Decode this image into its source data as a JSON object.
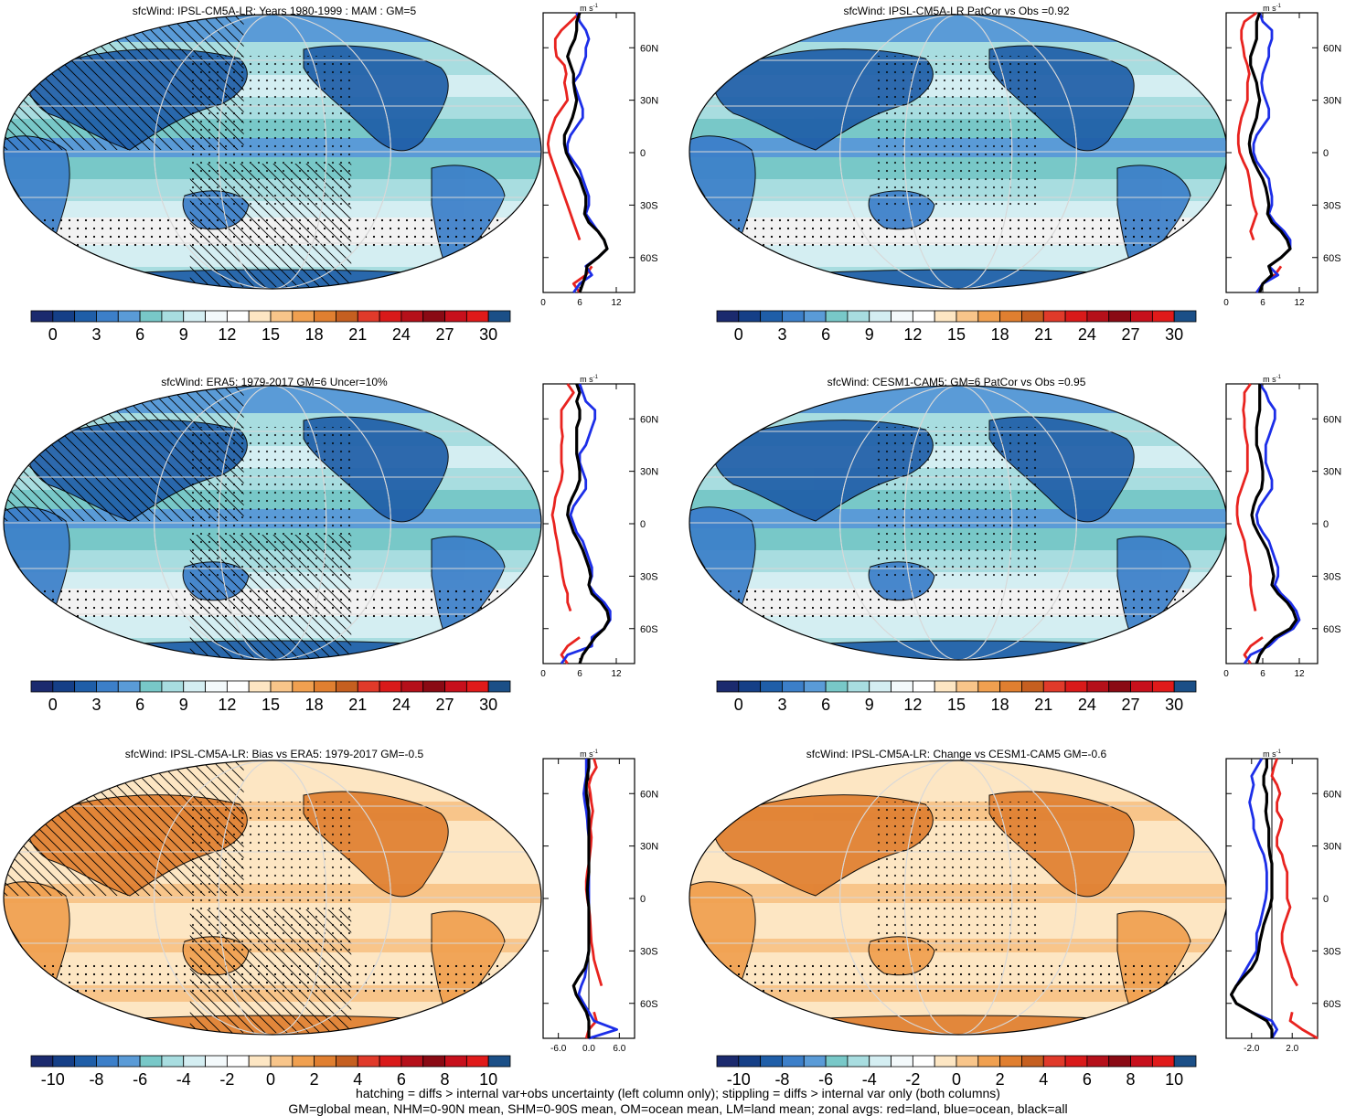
{
  "colors": {
    "mean_scale": [
      "#1b2a6e",
      "#153f87",
      "#1f5ea8",
      "#3c7fc9",
      "#5a9bd7",
      "#78c8c8",
      "#a8dde0",
      "#d4eef2",
      "#f3f9fb",
      "#ffffff",
      "#fde6c3",
      "#f8c58a",
      "#f0a050",
      "#e07f30",
      "#c55f20",
      "#e03a2a",
      "#d91a1a",
      "#b5101a",
      "#8a0a14",
      "#c7101c",
      "#e01a1a",
      "#1b4f87"
    ],
    "diff_scale": [
      "#1b2a6e",
      "#153f87",
      "#1f5ea8",
      "#3c7fc9",
      "#5a9bd7",
      "#78c8c8",
      "#a8dde0",
      "#d4eef2",
      "#f3f9fb",
      "#ffffff",
      "#fde6c3",
      "#f8c58a",
      "#f0a050",
      "#e07f30",
      "#c55f20",
      "#e03a2a",
      "#d91a1a",
      "#b5101a",
      "#8a0a14",
      "#c7101c",
      "#e01a1a",
      "#1b4f87"
    ],
    "land": "#e8231f",
    "ocean": "#1c2ee8",
    "all": "#000000"
  },
  "panels": [
    {
      "title": "sfcWind: IPSL-CM5A-LR: Years 1980-1999 : MAM : GM=5",
      "map_type": "mean",
      "hatched": true,
      "colorbar_labels": [
        "0",
        "3",
        "6",
        "9",
        "12",
        "15",
        "18",
        "21",
        "24",
        "27",
        "30"
      ],
      "zonal": {
        "unit": "m s",
        "unit_exp": "-1",
        "lat_labels": [
          "60N",
          "30N",
          "0",
          "30S",
          "60S"
        ],
        "x_labels": [
          "0",
          "6",
          "12"
        ],
        "xlim": [
          0,
          15
        ],
        "lat": [
          80,
          75,
          70,
          65,
          60,
          55,
          50,
          45,
          40,
          35,
          30,
          25,
          20,
          15,
          10,
          5,
          0,
          -5,
          -10,
          -15,
          -20,
          -25,
          -30,
          -35,
          -40,
          -45,
          -50,
          -55,
          -60,
          -65,
          -70,
          -75,
          -80
        ],
        "land": [
          6,
          4.5,
          3,
          2,
          2,
          2.2,
          3.5,
          3.8,
          3.5,
          3.8,
          4,
          3,
          2,
          1.5,
          1,
          0.8,
          1,
          1.5,
          2,
          2.5,
          3,
          3.5,
          4,
          4.5,
          5,
          5.5,
          6,
          null,
          null,
          8,
          7,
          5,
          6
        ],
        "ocean": [
          5.5,
          6,
          7,
          7.5,
          7,
          7,
          6.5,
          6,
          5,
          5.5,
          6,
          6.5,
          6.5,
          5.5,
          4.5,
          4,
          4,
          5,
          6,
          6.5,
          7,
          7.5,
          7.5,
          7,
          8,
          9,
          10,
          10.5,
          9,
          7,
          8,
          6,
          5
        ],
        "all": [
          6,
          5.5,
          5.5,
          5.2,
          4.5,
          4,
          4.5,
          5,
          5,
          5.2,
          5.5,
          5.2,
          4.8,
          4.2,
          3.5,
          3.5,
          3.8,
          4.5,
          5.2,
          6,
          6.5,
          7,
          7,
          6.8,
          7.5,
          9,
          10,
          10.5,
          9,
          7.2,
          7,
          6.5,
          6
        ]
      }
    },
    {
      "title": "sfcWind: IPSL-CM5A-LR PatCor vs Obs =0.92",
      "map_type": "mean",
      "hatched": false,
      "colorbar_labels": [
        "0",
        "3",
        "6",
        "9",
        "12",
        "15",
        "18",
        "21",
        "24",
        "27",
        "30"
      ],
      "zonal": {
        "unit": "m s",
        "unit_exp": "-1",
        "lat_labels": [
          "60N",
          "30N",
          "0",
          "30S",
          "60S"
        ],
        "x_labels": [
          "0",
          "6",
          "12"
        ],
        "xlim": [
          0,
          15
        ],
        "lat": [
          80,
          75,
          70,
          65,
          60,
          55,
          50,
          45,
          40,
          35,
          30,
          25,
          20,
          15,
          10,
          5,
          0,
          -5,
          -10,
          -15,
          -20,
          -25,
          -30,
          -35,
          -40,
          -45,
          -50,
          -55,
          -60,
          -65,
          -70,
          -75,
          -80
        ],
        "land": [
          5,
          3,
          2.5,
          2.5,
          2.8,
          3,
          3.5,
          3.8,
          3.5,
          3.5,
          3.5,
          3,
          2.5,
          2.2,
          2,
          2,
          2.2,
          2.8,
          3.5,
          3.8,
          4,
          4.2,
          4.5,
          5,
          4.5,
          4,
          4.5,
          null,
          null,
          9,
          8,
          6,
          5
        ],
        "ocean": [
          5.5,
          6,
          7.5,
          7.5,
          7,
          7,
          6.5,
          6,
          5.8,
          6,
          6.5,
          7,
          7,
          6,
          5,
          4.5,
          4.5,
          5,
          6,
          7,
          7.2,
          7.5,
          7.5,
          7,
          8,
          9.5,
          10.5,
          10.5,
          9,
          7,
          8.5,
          6,
          5
        ],
        "all": [
          5.5,
          5,
          5,
          5,
          4.5,
          4,
          4,
          4.5,
          5,
          5.2,
          5.5,
          5.2,
          5,
          4.5,
          4,
          3.8,
          4,
          4.5,
          5.2,
          6,
          6.5,
          6.8,
          7,
          6.8,
          7.5,
          9,
          10,
          10.5,
          9,
          7,
          7.5,
          6,
          5.5
        ]
      }
    },
    {
      "title": "sfcWind: ERA5: 1979-2017 GM=6 Uncer=10%",
      "map_type": "mean",
      "hatched": true,
      "colorbar_labels": [
        "0",
        "3",
        "6",
        "9",
        "12",
        "15",
        "18",
        "21",
        "24",
        "27",
        "30"
      ],
      "zonal": {
        "unit": "m s",
        "unit_exp": "-1",
        "lat_labels": [
          "60N",
          "30N",
          "0",
          "30S",
          "60S"
        ],
        "x_labels": [
          "0",
          "6",
          "12"
        ],
        "xlim": [
          0,
          15
        ],
        "lat": [
          80,
          75,
          70,
          65,
          60,
          55,
          50,
          45,
          40,
          35,
          30,
          25,
          20,
          15,
          10,
          5,
          0,
          -5,
          -10,
          -15,
          -20,
          -25,
          -30,
          -35,
          -40,
          -45,
          -50,
          -55,
          -60,
          -65,
          -70,
          -75,
          -80
        ],
        "land": [
          4,
          5,
          4,
          3,
          3,
          3,
          3.2,
          3,
          3,
          3,
          3.2,
          3,
          2.5,
          2,
          1.8,
          1.5,
          1.8,
          2,
          2.3,
          2.5,
          2.8,
          3,
          3.2,
          3.5,
          4,
          4,
          4.5,
          null,
          null,
          6,
          4,
          3,
          4
        ],
        "ocean": [
          6,
          6.5,
          7,
          8.5,
          8.5,
          8,
          7.5,
          7,
          6,
          6,
          6.5,
          7,
          7,
          6,
          5,
          4.5,
          5,
          5.5,
          6.5,
          7,
          7.5,
          8,
          8,
          7.5,
          8.5,
          10,
          11,
          11,
          10,
          8,
          8,
          4,
          3
        ],
        "all": [
          5.5,
          6,
          5.5,
          6,
          6,
          5.5,
          5.5,
          5.5,
          5.5,
          5.8,
          6,
          6,
          5.5,
          4.8,
          4.2,
          4,
          4.5,
          5,
          5.8,
          6.5,
          7,
          7.5,
          7.8,
          7.5,
          8,
          9.5,
          10.5,
          10.8,
          10,
          8.5,
          7.5,
          6.5,
          6
        ]
      }
    },
    {
      "title": "sfcWind: CESM1-CAM5: GM=6 PatCor vs Obs =0.95",
      "map_type": "mean",
      "hatched": false,
      "colorbar_labels": [
        "0",
        "3",
        "6",
        "9",
        "12",
        "15",
        "18",
        "21",
        "24",
        "27",
        "30"
      ],
      "zonal": {
        "unit": "m s",
        "unit_exp": "-1",
        "lat_labels": [
          "60N",
          "30N",
          "0",
          "30S",
          "60S"
        ],
        "x_labels": [
          "0",
          "6",
          "12"
        ],
        "xlim": [
          0,
          15
        ],
        "lat": [
          80,
          75,
          70,
          65,
          60,
          55,
          50,
          45,
          40,
          35,
          30,
          25,
          20,
          15,
          10,
          5,
          0,
          -5,
          -10,
          -15,
          -20,
          -25,
          -30,
          -35,
          -40,
          -45,
          -50,
          -55,
          -60,
          -65,
          -70,
          -75,
          -80
        ],
        "land": [
          4,
          3,
          3,
          2.8,
          3,
          3,
          3.2,
          3.5,
          3.5,
          3.5,
          3.5,
          3,
          2.5,
          2,
          1.8,
          1.8,
          2,
          2.5,
          3,
          3.2,
          3.5,
          3.8,
          4,
          4,
          4.2,
          4.5,
          4.8,
          null,
          null,
          6,
          4,
          3,
          4
        ],
        "ocean": [
          5.5,
          6.5,
          7,
          8,
          8,
          7.5,
          7,
          6.5,
          6.5,
          6.5,
          7,
          7.5,
          7.5,
          6.5,
          5.5,
          5,
          5.2,
          6,
          7,
          7.5,
          8,
          8.5,
          8.5,
          8,
          9,
          10.5,
          11.5,
          12,
          11,
          8.5,
          7,
          4,
          3
        ],
        "all": [
          5.5,
          5.5,
          5.5,
          5.5,
          5.2,
          5,
          5,
          5,
          5.5,
          5.8,
          6,
          6,
          5.8,
          5,
          4.5,
          4.2,
          4.5,
          5.2,
          6,
          6.8,
          7.2,
          7.5,
          7.8,
          7.5,
          8.5,
          10,
          11,
          11.5,
          10.5,
          8,
          6.5,
          5.5,
          5
        ]
      }
    },
    {
      "title": "sfcWind: IPSL-CM5A-LR: Bias vs ERA5: 1979-2017 GM=-0.5",
      "map_type": "diff",
      "hatched": true,
      "colorbar_labels": [
        "-10",
        "-8",
        "-6",
        "-4",
        "-2",
        "0",
        "2",
        "4",
        "6",
        "8",
        "10"
      ],
      "zonal": {
        "unit": "m s",
        "unit_exp": "-1",
        "lat_labels": [
          "60N",
          "30N",
          "0",
          "30S",
          "60S"
        ],
        "x_labels": [
          "-6.0",
          "0.0",
          "6.0"
        ],
        "xlim": [
          -9,
          9
        ],
        "lat": [
          80,
          75,
          70,
          65,
          60,
          55,
          50,
          45,
          40,
          35,
          30,
          25,
          20,
          15,
          10,
          5,
          0,
          -5,
          -10,
          -15,
          -20,
          -25,
          -30,
          -35,
          -40,
          -45,
          -50,
          -55,
          -60,
          -65,
          -70,
          -75,
          -80
        ],
        "land": [
          1,
          1.5,
          0.5,
          0,
          0.3,
          0.5,
          0.8,
          0.5,
          0.3,
          0.5,
          0.4,
          0.2,
          0,
          -0.3,
          -0.5,
          -0.5,
          -0.3,
          0,
          0.2,
          0.3,
          0.4,
          0.5,
          0.8,
          1,
          1.5,
          2,
          2.5,
          null,
          null,
          1,
          1.5,
          0,
          -0.5
        ],
        "ocean": [
          -0.5,
          -0.5,
          -0.5,
          -0.8,
          -1,
          -0.8,
          -0.5,
          -0.3,
          -0.2,
          0,
          0,
          0,
          0,
          0,
          0,
          0,
          0,
          0,
          0,
          0,
          0,
          0,
          0,
          -0.3,
          -0.5,
          -0.8,
          -1.5,
          -2,
          -1,
          0,
          1,
          5.5,
          0
        ],
        "all": [
          0,
          0,
          -0.3,
          -0.5,
          -0.5,
          -0.3,
          0,
          0,
          0,
          0,
          0,
          0,
          0,
          0,
          -0.2,
          -0.3,
          -0.2,
          0,
          0,
          0,
          0,
          0,
          0,
          -0.3,
          -0.8,
          -2,
          -3,
          -2.5,
          -1.5,
          -0.5,
          0,
          0,
          0
        ]
      }
    },
    {
      "title": "sfcWind: IPSL-CM5A-LR: Change vs CESM1-CAM5 GM=-0.6",
      "map_type": "diff",
      "hatched": false,
      "colorbar_labels": [
        "-10",
        "-8",
        "-6",
        "-4",
        "-2",
        "0",
        "2",
        "4",
        "6",
        "8",
        "10"
      ],
      "zonal": {
        "unit": "m s",
        "unit_exp": "-1",
        "lat_labels": [
          "60N",
          "30N",
          "0",
          "30S",
          "60S"
        ],
        "x_labels": [
          "-2.0",
          "2.0"
        ],
        "xlim": [
          -4.5,
          4.5
        ],
        "lat": [
          80,
          75,
          70,
          65,
          60,
          55,
          50,
          45,
          40,
          35,
          30,
          25,
          20,
          15,
          10,
          5,
          0,
          -5,
          -10,
          -15,
          -20,
          -25,
          -30,
          -35,
          -40,
          -45,
          -50,
          -55,
          -60,
          -65,
          -70,
          -75,
          -80
        ],
        "land": [
          0.5,
          0.2,
          0,
          0.5,
          0.8,
          0.5,
          0.5,
          1,
          0.8,
          0.5,
          0.5,
          1,
          1.2,
          1.5,
          1.5,
          1.5,
          1.5,
          1.8,
          1.5,
          1.2,
          1,
          1,
          1.2,
          1.5,
          1.8,
          2,
          2.5,
          null,
          null,
          2,
          1.8,
          3,
          4.5
        ],
        "ocean": [
          -1,
          -1.5,
          -2,
          -1.8,
          -2,
          -2.2,
          -2,
          -1.8,
          -1.8,
          -1.5,
          -1.2,
          -0.8,
          -0.6,
          -0.5,
          -0.5,
          -0.5,
          -0.6,
          -0.8,
          -1,
          -1.2,
          -1.5,
          -1.5,
          -1.5,
          -2,
          -2.5,
          -3,
          -3.5,
          -4,
          -3.5,
          -2,
          0,
          0.5,
          0
        ],
        "all": [
          -0.5,
          -0.5,
          -0.8,
          -0.8,
          -0.5,
          -0.5,
          -0.6,
          -0.5,
          -0.3,
          -0.3,
          -0.3,
          -0.2,
          0,
          0,
          0,
          0,
          0,
          -0.2,
          -0.5,
          -0.8,
          -1,
          -1.2,
          -1.3,
          -1.5,
          -2,
          -2.8,
          -3.5,
          -4,
          -3.5,
          -2,
          -0.5,
          0,
          0
        ]
      }
    }
  ],
  "footer": {
    "line1": "hatching = diffs > internal var+obs uncertainty (left column only); stippling = diffs > internal var only (both columns)",
    "line2": "GM=global mean, NHM=0-90N mean, SHM=0-90S mean, OM=ocean mean, LM=land mean; zonal avgs: red=land, blue=ocean, black=all"
  },
  "chart_data": [
    {
      "type": "line",
      "title": "sfcWind: IPSL-CM5A-LR: Years 1980-1999 : MAM : GM=5",
      "xlabel": "m s-1",
      "ylabel": "",
      "xlim": [
        0,
        15
      ],
      "ylim": [
        -80,
        80
      ],
      "series": [
        {
          "name": "land",
          "color": "#e8231f"
        },
        {
          "name": "ocean",
          "color": "#1c2ee8"
        },
        {
          "name": "all",
          "color": "#000000"
        }
      ]
    },
    {
      "type": "line",
      "title": "sfcWind: IPSL-CM5A-LR PatCor vs Obs =0.92",
      "xlim": [
        0,
        15
      ],
      "ylim": [
        -80,
        80
      ]
    },
    {
      "type": "line",
      "title": "sfcWind: ERA5: 1979-2017 GM=6 Uncer=10%",
      "xlim": [
        0,
        15
      ],
      "ylim": [
        -80,
        80
      ]
    },
    {
      "type": "line",
      "title": "sfcWind: CESM1-CAM5: GM=6 PatCor vs Obs =0.95",
      "xlim": [
        0,
        15
      ],
      "ylim": [
        -80,
        80
      ]
    },
    {
      "type": "line",
      "title": "sfcWind: IPSL-CM5A-LR: Bias vs ERA5: 1979-2017 GM=-0.5",
      "xlim": [
        -9,
        9
      ],
      "ylim": [
        -80,
        80
      ]
    },
    {
      "type": "line",
      "title": "sfcWind: IPSL-CM5A-LR: Change vs CESM1-CAM5 GM=-0.6",
      "xlim": [
        -4.5,
        4.5
      ],
      "ylim": [
        -80,
        80
      ]
    }
  ]
}
